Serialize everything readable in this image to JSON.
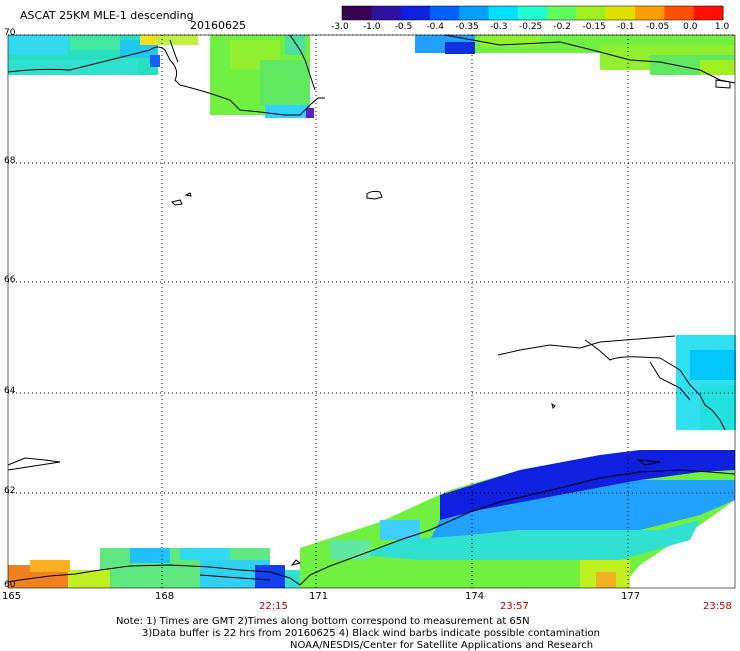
{
  "header": {
    "title": "ASCAT 25KM MLE-1 descending",
    "date": "20160625"
  },
  "colorbar": {
    "labels": [
      "-3.0",
      "-1.0",
      "-0.5",
      "-0.4",
      "-0.35",
      "-0.3",
      "-0.25",
      "-0.2",
      "-0.15",
      "-0.1",
      "-0.05",
      "0.0",
      "1.0"
    ],
    "colors": [
      "#3a0050",
      "#3010a0",
      "#1020e0",
      "#0060ff",
      "#00a0ff",
      "#00e0ff",
      "#20ffd0",
      "#60ff60",
      "#a0f020",
      "#e0e000",
      "#ffa000",
      "#ff5000",
      "#ff1000"
    ]
  },
  "map": {
    "lat_labels": [
      "70",
      "68",
      "66",
      "64",
      "62",
      "60"
    ],
    "lon_labels": [
      "165",
      "168",
      "171",
      "174",
      "177"
    ],
    "times": [
      "22:15",
      "23:57",
      "23:58"
    ]
  },
  "notes": {
    "line1": "Note: 1) Times are GMT 2)Times along bottom correspond to measurement at 65N",
    "line2": "3)Data buffer is 22 hrs from 20160625 4) Black wind barbs indicate possible contamination",
    "line3": "NOAA/NESDIS/Center for Satellite Applications and Research"
  }
}
